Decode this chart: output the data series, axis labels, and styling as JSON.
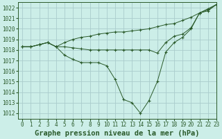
{
  "title": "Graphe pression niveau de la mer (hPa)",
  "bg_color": "#cceee8",
  "grid_color": "#aacccc",
  "line_color": "#2a5a2a",
  "xlim": [
    -0.5,
    23
  ],
  "ylim": [
    1011.5,
    1022.5
  ],
  "yticks": [
    1012,
    1013,
    1014,
    1015,
    1016,
    1017,
    1018,
    1019,
    1020,
    1021,
    1022
  ],
  "xticks": [
    0,
    1,
    2,
    3,
    4,
    5,
    6,
    7,
    8,
    9,
    10,
    11,
    12,
    13,
    14,
    15,
    16,
    17,
    18,
    19,
    20,
    21,
    22,
    23
  ],
  "lines": [
    {
      "x": [
        0,
        1,
        2,
        3,
        4,
        5,
        6,
        7,
        8,
        9,
        10,
        11,
        12,
        13,
        14,
        15,
        16,
        17,
        18,
        19,
        20,
        21,
        22,
        23
      ],
      "y": [
        1018.3,
        1018.3,
        1018.5,
        1018.7,
        1018.3,
        1018.7,
        1019.0,
        1019.2,
        1019.3,
        1019.5,
        1019.6,
        1019.7,
        1019.7,
        1019.8,
        1019.9,
        1020.0,
        1020.2,
        1020.4,
        1020.5,
        1020.8,
        1021.1,
        1021.5,
        1021.9,
        1022.3
      ]
    },
    {
      "x": [
        0,
        1,
        2,
        3,
        4,
        5,
        6,
        7,
        8,
        9,
        10,
        11,
        12,
        13,
        14,
        15,
        16,
        17,
        18,
        19,
        20,
        21,
        22,
        23
      ],
      "y": [
        1018.3,
        1018.3,
        1018.5,
        1018.7,
        1018.3,
        1018.3,
        1018.2,
        1018.1,
        1018.0,
        1018.0,
        1018.0,
        1018.0,
        1018.0,
        1018.0,
        1018.0,
        1018.0,
        1017.7,
        1018.7,
        1019.3,
        1019.5,
        1020.1,
        1021.5,
        1021.7,
        1022.3
      ]
    },
    {
      "x": [
        0,
        1,
        2,
        3,
        4,
        5,
        6,
        7,
        8,
        9,
        10,
        11,
        12,
        13,
        14,
        15,
        16,
        17,
        18,
        19,
        20,
        21,
        22,
        23
      ],
      "y": [
        1018.3,
        1018.3,
        1018.5,
        1018.7,
        1018.3,
        1017.5,
        1017.1,
        1016.8,
        1016.8,
        1016.8,
        1016.5,
        1015.2,
        1013.3,
        1013.0,
        1012.0,
        1013.2,
        1015.0,
        1017.8,
        1018.7,
        1019.2,
        1020.0,
        1021.5,
        1021.8,
        1022.3
      ]
    }
  ],
  "title_fontsize": 7.5,
  "tick_fontsize": 5.5
}
